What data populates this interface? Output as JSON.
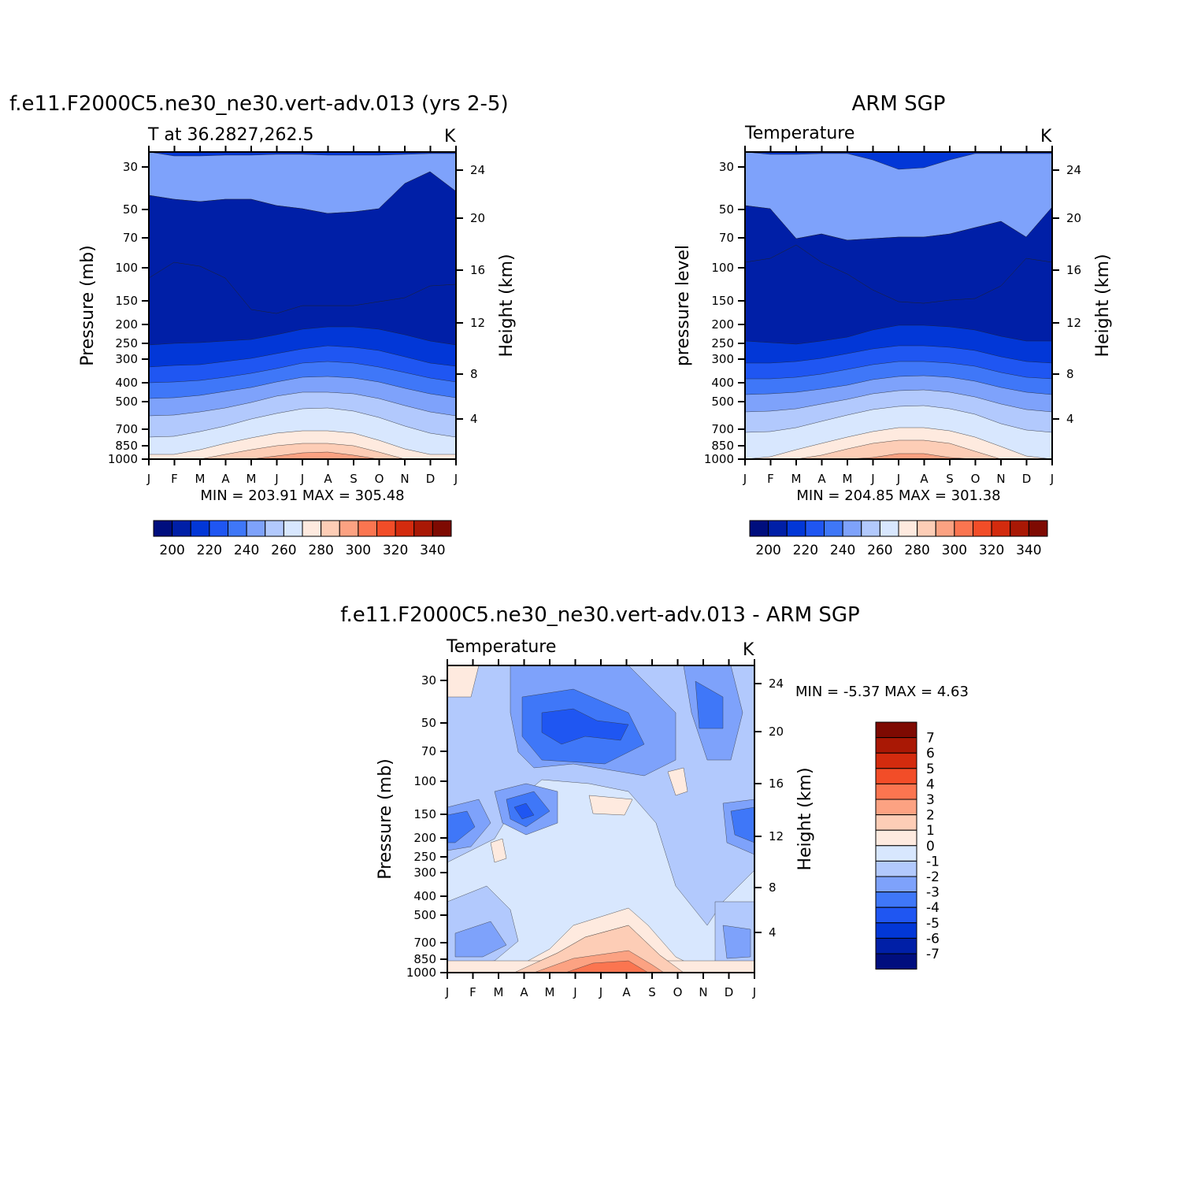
{
  "colors": {
    "temp_levels": [
      "#000e7e",
      "#001fa7",
      "#0237d7",
      "#1f56f2",
      "#3f77f8",
      "#7ea2fb",
      "#b2c9fd",
      "#d8e7fe",
      "#feeadf",
      "#fdcdb6",
      "#fca282",
      "#fb7550",
      "#f24d28",
      "#d32b0e",
      "#a91805",
      "#7e0a02"
    ],
    "diff_levels": [
      "#000e7e",
      "#001fa7",
      "#0237d7",
      "#1f56f2",
      "#3f77f8",
      "#7ea2fb",
      "#b2c9fd",
      "#d8e7fe",
      "#feeadf",
      "#fdcdb6",
      "#fca282",
      "#fb7550",
      "#f24d28",
      "#d32b0e",
      "#a91805",
      "#7e0a02"
    ]
  },
  "chart_data": [
    {
      "type": "heatmap",
      "title": "f.e11.F2000C5.ne30_ne30.vert-adv.013 (yrs 2-5)",
      "left_label": "T at 36.2827,262.5",
      "right_label": "K",
      "ylabel": "Pressure (mb)",
      "ylabel_right": "Height (km)",
      "x_ticks": [
        "J",
        "F",
        "M",
        "A",
        "M",
        "J",
        "J",
        "A",
        "S",
        "O",
        "N",
        "D",
        "J"
      ],
      "y_ticks": [
        "30",
        "50",
        "70",
        "100",
        "150",
        "200",
        "250",
        "300",
        "400",
        "500",
        "700",
        "850",
        "1000"
      ],
      "y2_ticks": [
        "24",
        "20",
        "16",
        "12",
        "8",
        "4"
      ],
      "stats": "MIN =  203.91  MAX =  305.48",
      "colorbar_labels": [
        "200",
        "220",
        "240",
        "260",
        "280",
        "300",
        "320",
        "340"
      ],
      "z_min": 203.91,
      "z_max": 305.48
    },
    {
      "type": "heatmap",
      "title": "ARM SGP",
      "left_label": "Temperature",
      "right_label": "K",
      "ylabel": "pressure level",
      "ylabel_right": "Height (km)",
      "x_ticks": [
        "J",
        "F",
        "M",
        "A",
        "M",
        "J",
        "J",
        "A",
        "S",
        "O",
        "N",
        "D",
        "J"
      ],
      "y_ticks": [
        "30",
        "50",
        "70",
        "100",
        "150",
        "200",
        "250",
        "300",
        "400",
        "500",
        "700",
        "850",
        "1000"
      ],
      "y2_ticks": [
        "24",
        "20",
        "16",
        "12",
        "8",
        "4"
      ],
      "stats": "MIN =  204.85  MAX =  301.38",
      "colorbar_labels": [
        "200",
        "220",
        "240",
        "260",
        "280",
        "300",
        "320",
        "340"
      ],
      "z_min": 204.85,
      "z_max": 301.38
    },
    {
      "type": "heatmap",
      "title": "f.e11.F2000C5.ne30_ne30.vert-adv.013 - ARM SGP",
      "left_label": "Temperature",
      "right_label": "K",
      "ylabel": "Pressure (mb)",
      "ylabel_right": "Height (km)",
      "x_ticks": [
        "J",
        "F",
        "M",
        "A",
        "M",
        "J",
        "J",
        "A",
        "S",
        "O",
        "N",
        "D",
        "J"
      ],
      "y_ticks": [
        "30",
        "50",
        "70",
        "100",
        "150",
        "200",
        "250",
        "300",
        "400",
        "500",
        "700",
        "850",
        "1000"
      ],
      "y2_ticks": [
        "24",
        "20",
        "16",
        "12",
        "8",
        "4"
      ],
      "stats": "MIN =   -5.37  MAX =    4.63",
      "colorbar_labels": [
        "7",
        "6",
        "5",
        "4",
        "3",
        "2",
        "1",
        "0",
        "-1",
        "-2",
        "-3",
        "-4",
        "-5",
        "-6",
        "-7"
      ],
      "z_min": -5.37,
      "z_max": 4.63
    }
  ]
}
